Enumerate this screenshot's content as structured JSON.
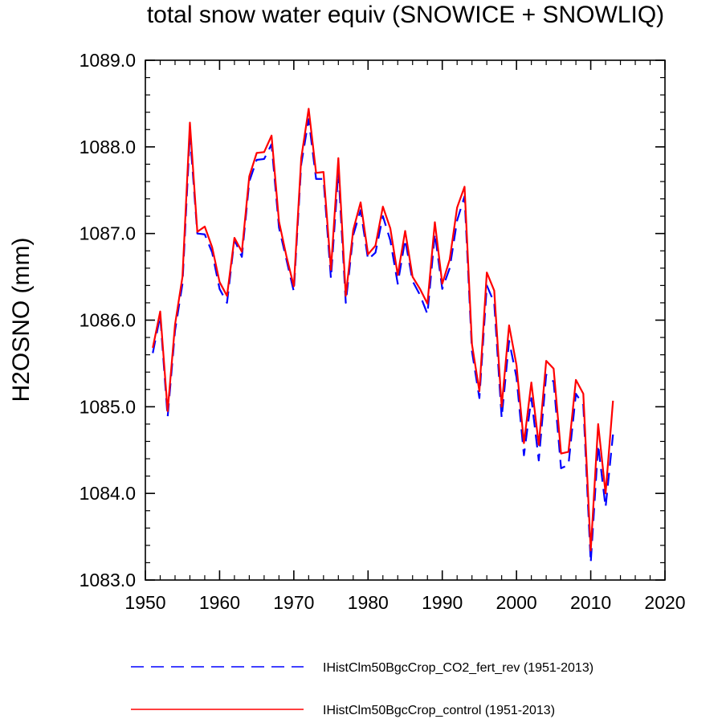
{
  "chart_data": {
    "type": "line",
    "title": "total snow water equiv (SNOWICE + SNOWLIQ)",
    "xlabel": "",
    "ylabel": "H2OSNO  (mm)",
    "xlim": [
      1950,
      2020
    ],
    "ylim": [
      1083.0,
      1089.0
    ],
    "xticks": [
      1950,
      1960,
      1970,
      1980,
      1990,
      2000,
      2010,
      2020
    ],
    "xtick_labels": [
      "1950",
      "1960",
      "1970",
      "1980",
      "1990",
      "2000",
      "2010",
      "2020"
    ],
    "yticks": [
      1083.0,
      1084.0,
      1085.0,
      1086.0,
      1087.0,
      1088.0,
      1089.0
    ],
    "ytick_labels": [
      "1083.0",
      "1084.0",
      "1085.0",
      "1086.0",
      "1087.0",
      "1088.0",
      "1089.0"
    ],
    "x_minor_step": 2,
    "y_minor_step": 0.2,
    "grid": false,
    "legend_position": "bottom",
    "x": [
      1951,
      1952,
      1953,
      1954,
      1955,
      1956,
      1957,
      1958,
      1959,
      1960,
      1961,
      1962,
      1963,
      1964,
      1965,
      1966,
      1967,
      1968,
      1969,
      1970,
      1971,
      1972,
      1973,
      1974,
      1975,
      1976,
      1977,
      1978,
      1979,
      1980,
      1981,
      1982,
      1983,
      1984,
      1985,
      1986,
      1987,
      1988,
      1989,
      1990,
      1991,
      1992,
      1993,
      1994,
      1995,
      1996,
      1997,
      1998,
      1999,
      2000,
      2001,
      2002,
      2003,
      2004,
      2005,
      2006,
      2007,
      2008,
      2009,
      2010,
      2011,
      2012,
      2013
    ],
    "series": [
      {
        "name": "IHistClm50BgcCrop_CO2_fert_rev (1951-2013)",
        "color": "#0000ff",
        "dash": "dashed",
        "values": [
          1085.62,
          1086.05,
          1084.88,
          1085.88,
          1086.42,
          1088.15,
          1087.0,
          1086.99,
          1086.78,
          1086.36,
          1086.2,
          1086.93,
          1086.73,
          1087.6,
          1087.85,
          1087.86,
          1088.03,
          1087.07,
          1086.7,
          1086.33,
          1087.8,
          1088.32,
          1087.63,
          1087.63,
          1086.48,
          1087.72,
          1086.2,
          1086.98,
          1087.27,
          1086.7,
          1086.78,
          1087.2,
          1086.92,
          1086.42,
          1086.93,
          1086.45,
          1086.29,
          1086.07,
          1087.0,
          1086.36,
          1086.6,
          1087.15,
          1087.43,
          1085.64,
          1085.1,
          1086.4,
          1086.2,
          1084.87,
          1085.76,
          1085.34,
          1084.44,
          1085.1,
          1084.38,
          1085.37,
          1085.29,
          1084.29,
          1084.33,
          1085.15,
          1085.02,
          1083.2,
          1084.56,
          1083.84,
          1084.68
        ]
      },
      {
        "name": "IHistClm50BgcCrop_control (1951-2013)",
        "color": "#ff0000",
        "dash": "solid",
        "values": [
          1085.68,
          1086.1,
          1084.95,
          1085.95,
          1086.5,
          1088.28,
          1087.02,
          1087.08,
          1086.84,
          1086.44,
          1086.28,
          1086.95,
          1086.79,
          1087.66,
          1087.93,
          1087.94,
          1088.13,
          1087.14,
          1086.74,
          1086.39,
          1087.87,
          1088.44,
          1087.7,
          1087.71,
          1086.58,
          1087.87,
          1086.28,
          1087.04,
          1087.36,
          1086.76,
          1086.86,
          1087.31,
          1087.06,
          1086.52,
          1087.03,
          1086.5,
          1086.36,
          1086.19,
          1087.13,
          1086.42,
          1086.7,
          1087.3,
          1087.54,
          1085.72,
          1085.18,
          1086.55,
          1086.34,
          1085.0,
          1085.94,
          1085.48,
          1084.58,
          1085.28,
          1084.56,
          1085.53,
          1085.44,
          1084.46,
          1084.48,
          1085.31,
          1085.15,
          1083.34,
          1084.8,
          1084.0,
          1085.07
        ]
      }
    ]
  }
}
